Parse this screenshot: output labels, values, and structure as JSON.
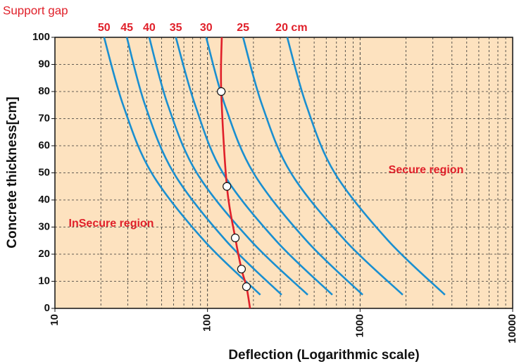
{
  "chart_data": {
    "type": "line",
    "title": "Support gap",
    "x_label": "Deflection (Logarithmic scale)",
    "y_label": "Concrete thickness[cm]",
    "log_x": true,
    "grid": true,
    "background": "#fde2bf",
    "xlim": [
      10,
      10000
    ],
    "ylim": [
      0,
      100
    ],
    "xticks": [
      10,
      100,
      1000,
      10000
    ],
    "yticks": [
      0,
      10,
      20,
      30,
      40,
      50,
      60,
      70,
      80,
      90,
      100
    ],
    "annotations": [
      "Secure region",
      "InSecure region"
    ],
    "series": [
      {
        "name": "50",
        "color": "#1a8fd0",
        "x": [
          21,
          28,
          43,
          95,
          222
        ],
        "y": [
          100,
          75,
          50,
          25,
          5
        ]
      },
      {
        "name": "45",
        "color": "#1a8fd0",
        "x": [
          29.6,
          39,
          60,
          132,
          306
        ],
        "y": [
          100,
          75,
          50,
          25,
          5
        ]
      },
      {
        "name": "40",
        "color": "#1a8fd0",
        "x": [
          41.5,
          55,
          85,
          192,
          454
        ],
        "y": [
          100,
          75,
          50,
          25,
          5
        ]
      },
      {
        "name": "35",
        "color": "#1a8fd0",
        "x": [
          62,
          83,
          126,
          281,
          658
        ],
        "y": [
          100,
          75,
          50,
          25,
          5
        ]
      },
      {
        "name": "30",
        "color": "#1a8fd0",
        "x": [
          98,
          130,
          200,
          445,
          1040
        ],
        "y": [
          100,
          75,
          50,
          25,
          5
        ]
      },
      {
        "name": "25",
        "color": "#1a8fd0",
        "x": [
          171,
          228,
          352,
          800,
          1905
        ],
        "y": [
          100,
          75,
          50,
          25,
          5
        ]
      },
      {
        "name": "20 cm",
        "color": "#1a8fd0",
        "x": [
          333,
          444,
          681,
          1528,
          3600
        ],
        "y": [
          100,
          75,
          50,
          25,
          5
        ]
      }
    ],
    "gap_line": {
      "color": "#e0202a",
      "x": [
        124,
        123,
        134,
        152,
        167,
        180,
        190
      ],
      "y": [
        100,
        80,
        45,
        26,
        14.5,
        8,
        0
      ]
    },
    "gap_points": {
      "x": [
        123,
        134,
        152,
        167,
        180
      ],
      "y": [
        80,
        45,
        26,
        14.5,
        8
      ]
    }
  }
}
